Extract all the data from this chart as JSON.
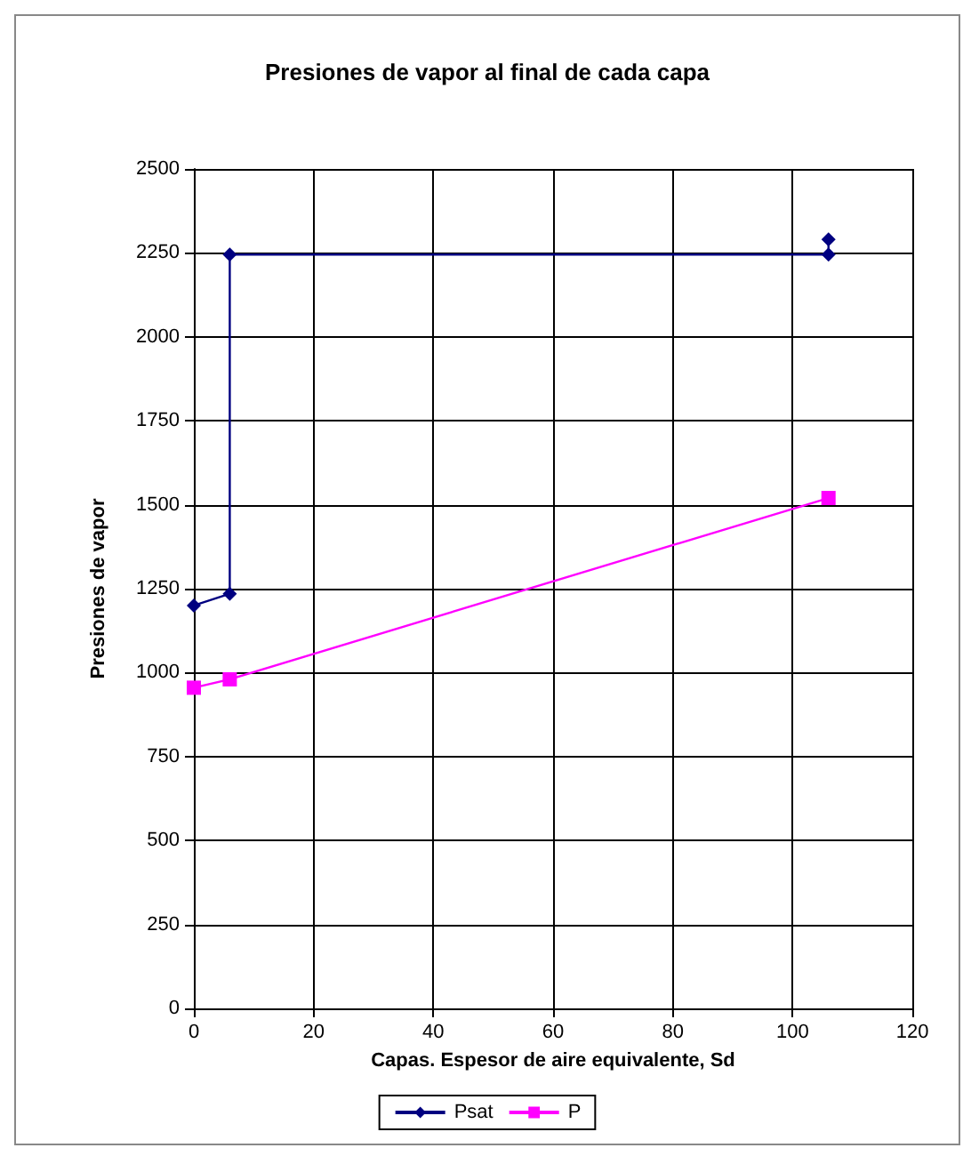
{
  "chart_data": {
    "type": "line",
    "title": "Presiones de vapor al final de cada capa",
    "xlabel": "Capas. Espesor de aire equivalente, Sd",
    "ylabel": "Presiones de vapor",
    "series": [
      {
        "name": "Psat",
        "color": "#000080",
        "x": [
          0,
          6,
          6,
          106,
          106
        ],
        "values": [
          1200,
          1235,
          2245,
          2245,
          2290
        ],
        "marker": "diamond"
      },
      {
        "name": "P",
        "color": "#ff00ff",
        "x": [
          0,
          6,
          106
        ],
        "values": [
          955,
          980,
          1520
        ],
        "marker": "square"
      }
    ],
    "xlim": [
      0,
      120
    ],
    "xticks": [
      0,
      20,
      40,
      60,
      80,
      100,
      120
    ],
    "ylim": [
      0,
      2500
    ],
    "yticks": [
      0,
      250,
      500,
      750,
      1000,
      1250,
      1500,
      1750,
      2000,
      2250,
      2500
    ],
    "grid": true,
    "legend": "bottom",
    "line_style": "solid"
  }
}
